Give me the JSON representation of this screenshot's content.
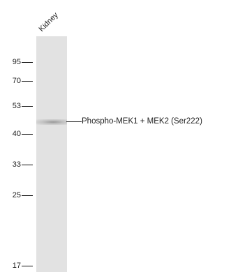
{
  "lane": {
    "label": "Kidney",
    "color": "#e2e2e2"
  },
  "markers": [
    {
      "label": "95"
    },
    {
      "label": "70"
    },
    {
      "label": "53"
    },
    {
      "label": "40"
    },
    {
      "label": "33"
    },
    {
      "label": "25"
    },
    {
      "label": "17"
    }
  ],
  "band": {
    "label": "Phospho-MEK1 + MEK2 (Ser222)"
  }
}
